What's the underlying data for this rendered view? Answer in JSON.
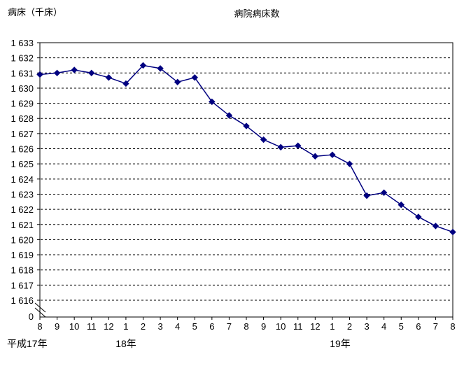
{
  "page": {
    "background_color": "#ffffff",
    "text_color": "#000000"
  },
  "chart_data": {
    "type": "line",
    "title": "病院病床数",
    "y_axis_title": "病床（千床）",
    "grid": "horizontal-dashed",
    "legend": "none",
    "axis_break_at_bottom": true,
    "ylim_display": [
      1616,
      1633
    ],
    "y_tick_labels": [
      "1 633",
      "1 632",
      "1 631",
      "1 630",
      "1 629",
      "1 628",
      "1 627",
      "1 626",
      "1 625",
      "1 624",
      "1 623",
      "1 622",
      "1 621",
      "1 620",
      "1 619",
      "1 618",
      "1 617",
      "1 616"
    ],
    "y_zero_label": "0",
    "categories": [
      "8",
      "9",
      "10",
      "11",
      "12",
      "1",
      "2",
      "3",
      "4",
      "5",
      "6",
      "7",
      "8",
      "9",
      "10",
      "11",
      "12",
      "1",
      "2",
      "3",
      "4",
      "5",
      "6",
      "7",
      "8"
    ],
    "era_labels": [
      {
        "label": "平成17年",
        "anchor": "start",
        "x": 10
      },
      {
        "label": "18年",
        "anchor": "middle",
        "x": 180
      },
      {
        "label": "19年",
        "anchor": "middle",
        "x": 486
      }
    ],
    "series": [
      {
        "name": "病院病床数",
        "color": "#000080",
        "marker": "diamond",
        "values": [
          1630.9,
          1631.0,
          1631.2,
          1631.0,
          1630.7,
          1630.3,
          1631.5,
          1631.3,
          1630.4,
          1630.7,
          1629.1,
          1628.2,
          1627.5,
          1626.6,
          1626.1,
          1626.2,
          1625.5,
          1625.6,
          1625.0,
          1622.9,
          1623.1,
          1622.3,
          1621.5,
          1620.9,
          1620.5
        ]
      }
    ],
    "layout": {
      "plot_left": 57,
      "plot_top": 61,
      "plot_right": 647,
      "plot_bottom": 453,
      "value_top": 1633,
      "value_bottom_gridline": 1616,
      "gridline_bottom_y": 429
    }
  }
}
